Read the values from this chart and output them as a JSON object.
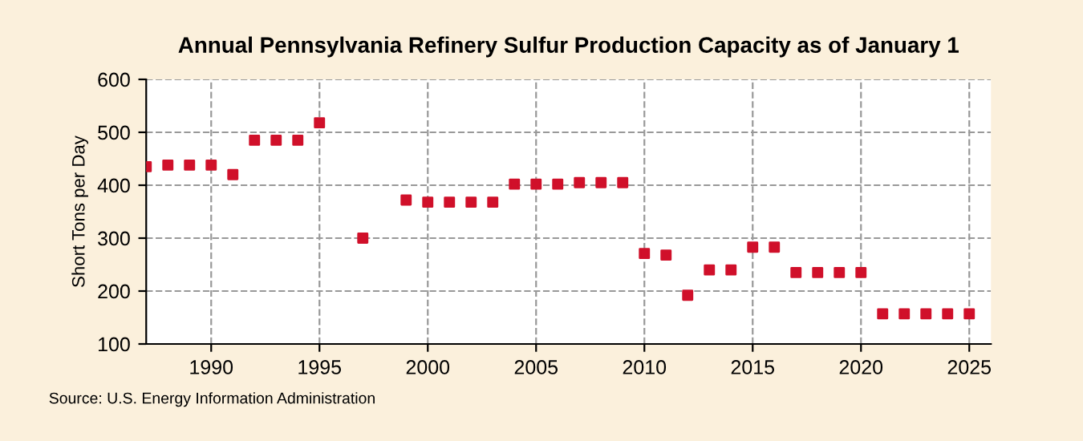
{
  "chart_data": {
    "type": "scatter",
    "title": "Annual Pennsylvania Refinery Sulfur Production Capacity as of January 1",
    "ylabel": "Short Tons per Day",
    "x": [
      1987,
      1988,
      1989,
      1990,
      1991,
      1992,
      1993,
      1994,
      1995,
      1997,
      1999,
      2000,
      2001,
      2002,
      2003,
      2004,
      2005,
      2006,
      2007,
      2008,
      2009,
      2010,
      2011,
      2012,
      2013,
      2014,
      2015,
      2016,
      2017,
      2018,
      2019,
      2020,
      2021,
      2022,
      2023,
      2024,
      2025
    ],
    "series": [
      {
        "color": "#d0102a",
        "values": [
          435,
          438,
          438,
          438,
          420,
          485,
          485,
          485,
          518,
          300,
          372,
          368,
          368,
          368,
          368,
          402,
          402,
          402,
          405,
          405,
          405,
          271,
          268,
          192,
          240,
          240,
          283,
          283,
          235,
          235,
          235,
          235,
          157,
          157,
          157,
          157,
          157
        ]
      }
    ],
    "xlim": [
      1987,
      2026
    ],
    "xticks": [
      1990,
      1995,
      2000,
      2005,
      2010,
      2015,
      2020,
      2025
    ],
    "ylim": [
      100,
      600
    ],
    "yticks": [
      100,
      200,
      300,
      400,
      500,
      600
    ],
    "grid": true,
    "marker": "square",
    "annotations": [
      "Source: U.S. Energy Information Administration"
    ]
  }
}
